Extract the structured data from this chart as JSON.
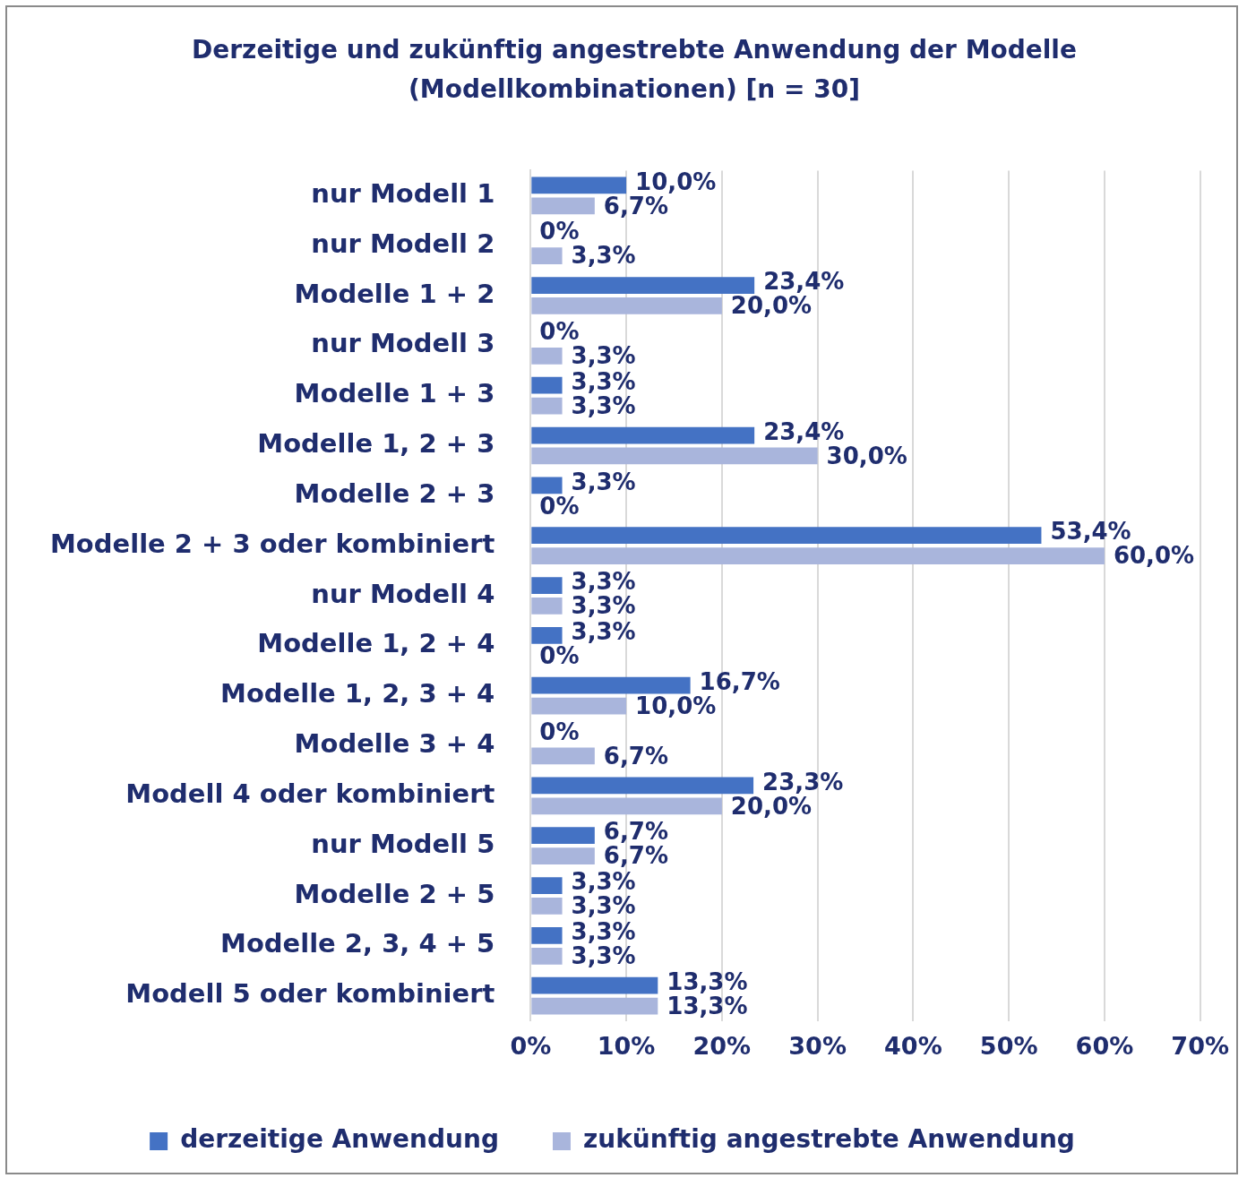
{
  "chart_data": {
    "type": "bar",
    "orientation": "horizontal",
    "title": "Derzeitige und zukünftig angestrebte Anwendung der Modelle (Modellkombinationen) [n = 30]",
    "categories": [
      "nur Modell 1",
      "nur Modell 2",
      "Modelle 1 + 2",
      "nur Modell 3",
      "Modelle 1 + 3",
      "Modelle 1, 2 + 3",
      "Modelle 2 + 3",
      "Modelle 2 + 3 oder kombiniert",
      "nur Modell 4",
      "Modelle 1, 2 + 4",
      "Modelle 1, 2, 3 + 4",
      "Modelle 3 + 4",
      "Modell 4 oder kombiniert",
      "nur Modell 5",
      "Modelle 2 + 5",
      "Modelle 2, 3, 4 + 5",
      "Modell 5 oder kombiniert"
    ],
    "series": [
      {
        "name": "derzeitige Anwendung",
        "color": "#4472c4",
        "values": [
          10.0,
          0,
          23.4,
          0,
          3.3,
          23.4,
          3.3,
          53.4,
          3.3,
          3.3,
          16.7,
          0,
          23.3,
          6.7,
          3.3,
          3.3,
          13.3
        ],
        "value_labels": [
          "10,0%",
          "0%",
          "23,4%",
          "0%",
          "3,3%",
          "23,4%",
          "3,3%",
          "53,4%",
          "3,3%",
          "3,3%",
          "16,7%",
          "0%",
          "23,3%",
          "6,7%",
          "3,3%",
          "3,3%",
          "13,3%"
        ]
      },
      {
        "name": "zukünftig angestrebte Anwendung",
        "color": "#a9b5dc",
        "values": [
          6.7,
          3.3,
          20.0,
          3.3,
          3.3,
          30.0,
          0,
          60.0,
          3.3,
          0,
          10.0,
          6.7,
          20.0,
          6.7,
          3.3,
          3.3,
          13.3
        ],
        "value_labels": [
          "6,7%",
          "3,3%",
          "20,0%",
          "3,3%",
          "3,3%",
          "30,0%",
          "0%",
          "60,0%",
          "3,3%",
          "0%",
          "10,0%",
          "6,7%",
          "20,0%",
          "6,7%",
          "3,3%",
          "3,3%",
          "13,3%"
        ]
      }
    ],
    "xlim": [
      0,
      70
    ],
    "xticks": [
      {
        "value": 0,
        "label": "0%"
      },
      {
        "value": 10,
        "label": "10%"
      },
      {
        "value": 20,
        "label": "20%"
      },
      {
        "value": 30,
        "label": "30%"
      },
      {
        "value": 40,
        "label": "40%"
      },
      {
        "value": 50,
        "label": "50%"
      },
      {
        "value": 60,
        "label": "60%"
      },
      {
        "value": 70,
        "label": "70%"
      }
    ],
    "grid": "x",
    "legend": "bottom"
  }
}
